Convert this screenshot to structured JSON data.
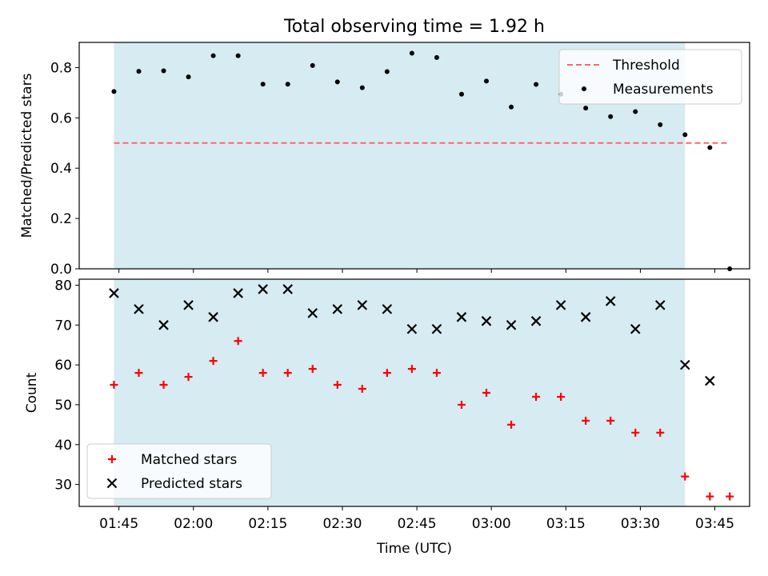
{
  "title": "Total observing time = 1.92 h",
  "chart_data": [
    {
      "type": "scatter",
      "panel": "top",
      "ylabel": "Matched/Predicted stars",
      "ylim": [
        0,
        0.9
      ],
      "yticks": [
        0.0,
        0.2,
        0.4,
        0.6,
        0.8
      ],
      "ytick_labels": [
        "0.0",
        "0.2",
        "0.4",
        "0.6",
        "0.8"
      ],
      "shaded_region": {
        "x_start": "01:44",
        "x_end": "03:39",
        "color": "#add8e6"
      },
      "legend": {
        "placement": "top-right",
        "entries": [
          "Threshold",
          "Measurements"
        ]
      },
      "series": [
        {
          "name": "Threshold",
          "kind": "dashed-line",
          "color": "#ff6666",
          "x": [
            "01:44",
            "03:48"
          ],
          "values": [
            0.5,
            0.5
          ]
        },
        {
          "name": "Measurements",
          "kind": "dot",
          "color": "#000000",
          "x": [
            "01:44",
            "01:49",
            "01:54",
            "01:59",
            "02:04",
            "02:09",
            "02:14",
            "02:19",
            "02:24",
            "02:29",
            "02:34",
            "02:39",
            "02:44",
            "02:49",
            "02:54",
            "02:59",
            "03:04",
            "03:09",
            "03:14",
            "03:19",
            "03:24",
            "03:29",
            "03:34",
            "03:39",
            "03:44",
            "03:48"
          ],
          "values": [
            0.705,
            0.785,
            0.787,
            0.763,
            0.847,
            0.847,
            0.734,
            0.734,
            0.808,
            0.743,
            0.72,
            0.784,
            0.857,
            0.84,
            0.694,
            0.746,
            0.643,
            0.733,
            0.694,
            0.639,
            0.605,
            0.625,
            0.573,
            0.533,
            0.482,
            0.0
          ]
        }
      ]
    },
    {
      "type": "scatter",
      "panel": "bottom",
      "xlabel": "Time (UTC)",
      "ylabel": "Count",
      "ylim": [
        24.5,
        81.5
      ],
      "yticks": [
        30,
        40,
        50,
        60,
        70,
        80
      ],
      "ytick_labels": [
        "30",
        "40",
        "50",
        "60",
        "70",
        "80"
      ],
      "xlim": [
        "01:37",
        "03:52"
      ],
      "xticks": [
        "01:45",
        "02:00",
        "02:15",
        "02:30",
        "02:45",
        "03:00",
        "03:15",
        "03:30",
        "03:45"
      ],
      "shaded_region": {
        "x_start": "01:44",
        "x_end": "03:39",
        "color": "#add8e6"
      },
      "legend": {
        "placement": "bottom-left",
        "entries": [
          "Matched stars",
          "Predicted stars"
        ]
      },
      "series": [
        {
          "name": "Matched stars",
          "marker": "plus",
          "color": "#ff0000",
          "x": [
            "01:44",
            "01:49",
            "01:54",
            "01:59",
            "02:04",
            "02:09",
            "02:14",
            "02:19",
            "02:24",
            "02:29",
            "02:34",
            "02:39",
            "02:44",
            "02:49",
            "02:54",
            "02:59",
            "03:04",
            "03:09",
            "03:14",
            "03:19",
            "03:24",
            "03:29",
            "03:34",
            "03:39",
            "03:44",
            "03:48"
          ],
          "values": [
            55,
            58,
            55,
            57,
            61,
            66,
            58,
            58,
            59,
            55,
            54,
            58,
            59,
            58,
            50,
            53,
            45,
            52,
            52,
            46,
            46,
            43,
            43,
            32,
            27,
            27
          ]
        },
        {
          "name": "Predicted stars",
          "marker": "x",
          "color": "#000000",
          "x": [
            "01:44",
            "01:49",
            "01:54",
            "01:59",
            "02:04",
            "02:09",
            "02:14",
            "02:19",
            "02:24",
            "02:29",
            "02:34",
            "02:39",
            "02:44",
            "02:49",
            "02:54",
            "02:59",
            "03:04",
            "03:09",
            "03:14",
            "03:19",
            "03:24",
            "03:29",
            "03:34",
            "03:39",
            "03:44"
          ],
          "values": [
            78,
            74,
            70,
            75,
            72,
            78,
            79,
            79,
            73,
            74,
            75,
            74,
            69,
            69,
            72,
            71,
            70,
            71,
            75,
            72,
            76,
            69,
            75,
            60,
            56
          ]
        }
      ]
    }
  ]
}
